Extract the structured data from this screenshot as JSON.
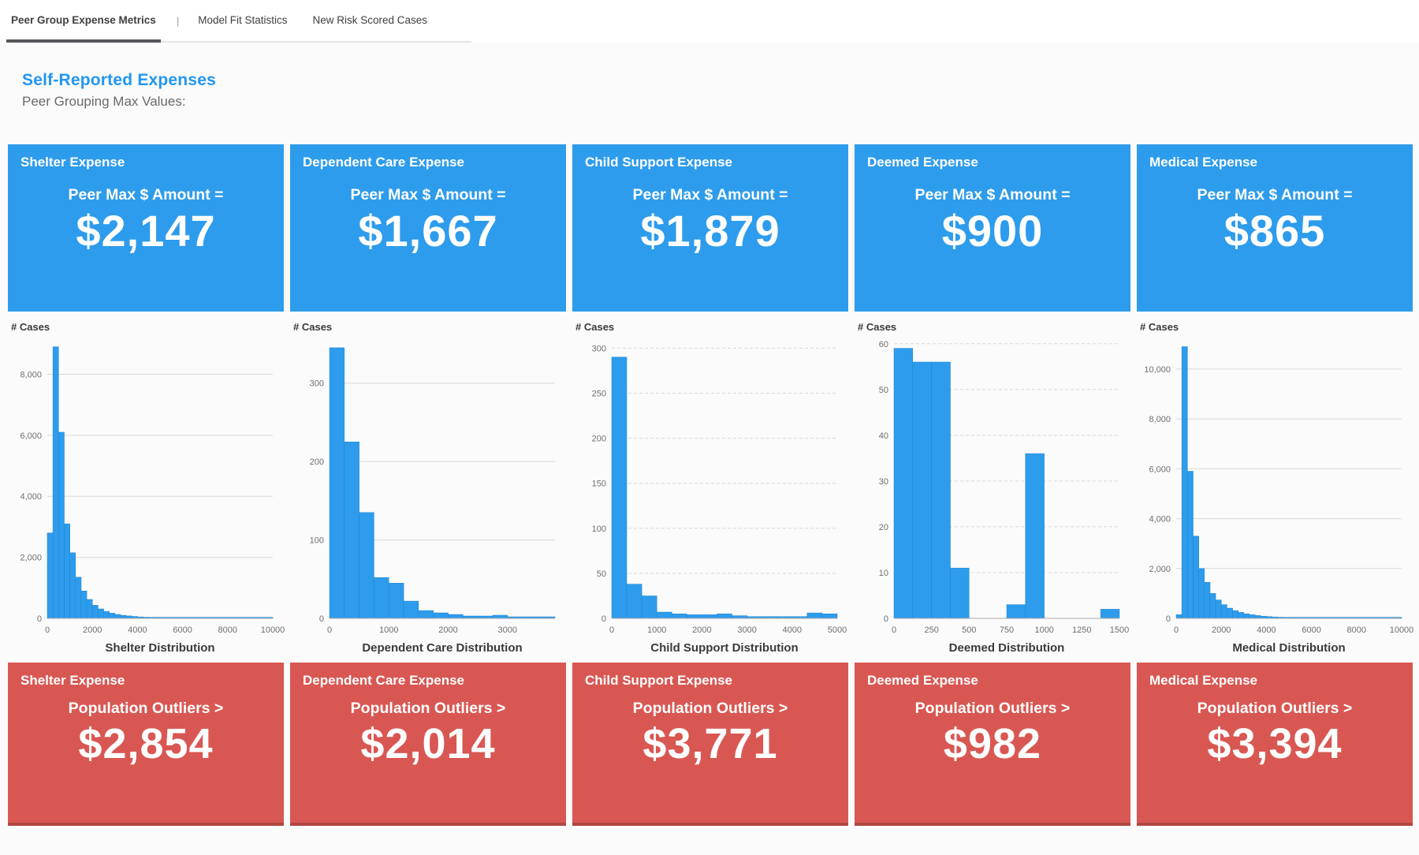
{
  "tabs": {
    "separator": "|",
    "items": [
      {
        "label": "Peer Group Expense Metrics",
        "active": true
      },
      {
        "label": "Model Fit Statistics",
        "active": false
      },
      {
        "label": "New Risk Scored Cases",
        "active": false
      }
    ]
  },
  "header": {
    "title": "Self-Reported Expenses",
    "subtitle": "Peer Grouping Max Values:"
  },
  "colors": {
    "accent_blue": "#2E9CEC",
    "accent_red": "#D95752",
    "title_blue": "#2196F3",
    "bar_blue": "#2E9CEC",
    "bar_stroke": "#1d83cc",
    "grid_line": "#d9d9d9",
    "axis_text": "#6e6e6e"
  },
  "columns": [
    {
      "name": "Shelter",
      "peer_tile": {
        "title": "Shelter Expense",
        "label": "Peer Max $ Amount =",
        "value": "$2,147"
      },
      "outlier_tile": {
        "title": "Shelter Expense",
        "label": "Population Outliers >",
        "value": "$2,854"
      }
    },
    {
      "name": "Dependent Care",
      "peer_tile": {
        "title": "Dependent Care Expense",
        "label": "Peer Max $ Amount =",
        "value": "$1,667"
      },
      "outlier_tile": {
        "title": "Dependent Care Expense",
        "label": "Population Outliers >",
        "value": "$2,014"
      }
    },
    {
      "name": "Child Support",
      "peer_tile": {
        "title": "Child Support Expense",
        "label": "Peer Max $ Amount =",
        "value": "$1,879"
      },
      "outlier_tile": {
        "title": "Child Support Expense",
        "label": "Population Outliers >",
        "value": "$3,771"
      }
    },
    {
      "name": "Deemed",
      "peer_tile": {
        "title": "Deemed Expense",
        "label": "Peer Max $ Amount =",
        "value": "$900"
      },
      "outlier_tile": {
        "title": "Deemed Expense",
        "label": "Population Outliers >",
        "value": "$982"
      }
    },
    {
      "name": "Medical",
      "peer_tile": {
        "title": "Medical Expense",
        "label": "Peer Max $ Amount =",
        "value": "$865"
      },
      "outlier_tile": {
        "title": "Medical Expense",
        "label": "Population Outliers >",
        "value": "$3,394"
      }
    }
  ],
  "chart_data": [
    {
      "type": "bar",
      "subtype": "histogram",
      "title": "Shelter Distribution",
      "ylabel": "# Cases",
      "xlabel": "Shelter Distribution",
      "xlim": [
        0,
        10000
      ],
      "ylim": [
        0,
        9150
      ],
      "xticks": [
        0,
        2000,
        4000,
        6000,
        8000,
        10000
      ],
      "yticks": [
        0,
        2000,
        4000,
        6000,
        8000
      ],
      "grid_style": "solid",
      "bars_format": "[bin_start, bin_width, count]",
      "bars": [
        [
          0,
          250,
          2800
        ],
        [
          250,
          250,
          8900
        ],
        [
          500,
          250,
          6100
        ],
        [
          750,
          250,
          3100
        ],
        [
          1000,
          250,
          2150
        ],
        [
          1250,
          250,
          1350
        ],
        [
          1500,
          250,
          900
        ],
        [
          1750,
          250,
          620
        ],
        [
          2000,
          250,
          430
        ],
        [
          2250,
          250,
          310
        ],
        [
          2500,
          250,
          230
        ],
        [
          2750,
          250,
          170
        ],
        [
          3000,
          250,
          130
        ],
        [
          3250,
          250,
          100
        ],
        [
          3500,
          250,
          80
        ],
        [
          3750,
          250,
          65
        ],
        [
          4000,
          250,
          50
        ],
        [
          4250,
          250,
          40
        ],
        [
          4500,
          250,
          32
        ],
        [
          4750,
          250,
          26
        ],
        [
          5000,
          500,
          18
        ],
        [
          5500,
          500,
          14
        ],
        [
          6000,
          500,
          11
        ],
        [
          6500,
          500,
          9
        ],
        [
          7000,
          500,
          7
        ],
        [
          7500,
          500,
          6
        ],
        [
          8000,
          500,
          5
        ],
        [
          8500,
          500,
          4
        ],
        [
          9000,
          500,
          4
        ],
        [
          9500,
          500,
          3
        ]
      ]
    },
    {
      "type": "bar",
      "subtype": "histogram",
      "title": "Dependent Care Distribution",
      "ylabel": "# Cases",
      "xlabel": "Dependent Care Distribution",
      "xlim": [
        0,
        3800
      ],
      "ylim": [
        0,
        356
      ],
      "xticks": [
        0,
        1000,
        2000,
        3000
      ],
      "yticks": [
        0,
        100,
        200,
        300
      ],
      "grid_style": "solid",
      "bars_format": "[bin_start, bin_width, count]",
      "bars": [
        [
          0,
          250,
          345
        ],
        [
          250,
          250,
          225
        ],
        [
          500,
          250,
          135
        ],
        [
          750,
          250,
          52
        ],
        [
          1000,
          250,
          45
        ],
        [
          1250,
          250,
          22
        ],
        [
          1500,
          250,
          10
        ],
        [
          1750,
          250,
          7
        ],
        [
          2000,
          250,
          5
        ],
        [
          2250,
          250,
          3
        ],
        [
          2500,
          250,
          3
        ],
        [
          2750,
          250,
          4
        ],
        [
          3000,
          250,
          2
        ],
        [
          3250,
          550,
          2
        ]
      ]
    },
    {
      "type": "bar",
      "subtype": "histogram",
      "title": "Child Support Distribution",
      "ylabel": "# Cases",
      "xlabel": "Child Support Distribution",
      "xlim": [
        0,
        5000
      ],
      "ylim": [
        0,
        310
      ],
      "xticks": [
        0,
        1000,
        2000,
        3000,
        4000,
        5000
      ],
      "yticks": [
        0,
        50,
        100,
        150,
        200,
        250,
        300
      ],
      "grid_style": "dashed",
      "bars_format": "[bin_start, bin_width, count]",
      "bars": [
        [
          0,
          333,
          290
        ],
        [
          333,
          334,
          38
        ],
        [
          667,
          333,
          25
        ],
        [
          1000,
          333,
          7
        ],
        [
          1333,
          334,
          5
        ],
        [
          1667,
          333,
          4
        ],
        [
          2000,
          333,
          4
        ],
        [
          2333,
          334,
          5
        ],
        [
          2667,
          333,
          3
        ],
        [
          3000,
          333,
          2
        ],
        [
          3333,
          334,
          2
        ],
        [
          3667,
          333,
          2
        ],
        [
          4000,
          333,
          2
        ],
        [
          4333,
          334,
          6
        ],
        [
          4667,
          333,
          5
        ]
      ]
    },
    {
      "type": "bar",
      "subtype": "histogram",
      "title": "Deemed Distribution",
      "ylabel": "# Cases",
      "xlabel": "Deemed Distribution",
      "xlim": [
        0,
        1500
      ],
      "ylim": [
        0,
        61
      ],
      "xticks": [
        0,
        250,
        500,
        750,
        1000,
        1250,
        1500
      ],
      "yticks": [
        0,
        10,
        20,
        30,
        40,
        50,
        60
      ],
      "grid_style": "dashed",
      "bars_format": "[bin_start, bin_width, count]",
      "bars": [
        [
          0,
          125,
          59
        ],
        [
          125,
          125,
          56
        ],
        [
          250,
          125,
          56
        ],
        [
          375,
          125,
          11
        ],
        [
          750,
          125,
          3
        ],
        [
          875,
          125,
          36
        ],
        [
          1375,
          125,
          2
        ]
      ]
    },
    {
      "type": "bar",
      "subtype": "histogram",
      "title": "Medical Distribution",
      "ylabel": "# Cases",
      "xlabel": "Medical Distribution",
      "xlim": [
        0,
        10000
      ],
      "ylim": [
        0,
        11200
      ],
      "xticks": [
        0,
        2000,
        4000,
        6000,
        8000,
        10000
      ],
      "yticks": [
        0,
        2000,
        4000,
        6000,
        8000,
        10000
      ],
      "grid_style": "solid",
      "bars_format": "[bin_start, bin_width, count]",
      "bars": [
        [
          0,
          250,
          150
        ],
        [
          250,
          250,
          10900
        ],
        [
          500,
          250,
          5900
        ],
        [
          750,
          250,
          3300
        ],
        [
          1000,
          250,
          2000
        ],
        [
          1250,
          250,
          1450
        ],
        [
          1500,
          250,
          1000
        ],
        [
          1750,
          250,
          740
        ],
        [
          2000,
          250,
          550
        ],
        [
          2250,
          250,
          410
        ],
        [
          2500,
          250,
          310
        ],
        [
          2750,
          250,
          240
        ],
        [
          3000,
          250,
          185
        ],
        [
          3250,
          250,
          145
        ],
        [
          3500,
          250,
          115
        ],
        [
          3750,
          250,
          90
        ],
        [
          4000,
          250,
          72
        ],
        [
          4250,
          250,
          58
        ],
        [
          4500,
          250,
          47
        ],
        [
          4750,
          250,
          38
        ],
        [
          5000,
          500,
          30
        ],
        [
          5500,
          500,
          24
        ],
        [
          6000,
          500,
          19
        ],
        [
          6500,
          500,
          15
        ],
        [
          7000,
          500,
          12
        ],
        [
          7500,
          500,
          10
        ],
        [
          8000,
          500,
          8
        ],
        [
          8500,
          500,
          7
        ],
        [
          9000,
          500,
          6
        ],
        [
          9500,
          500,
          5
        ]
      ]
    }
  ]
}
